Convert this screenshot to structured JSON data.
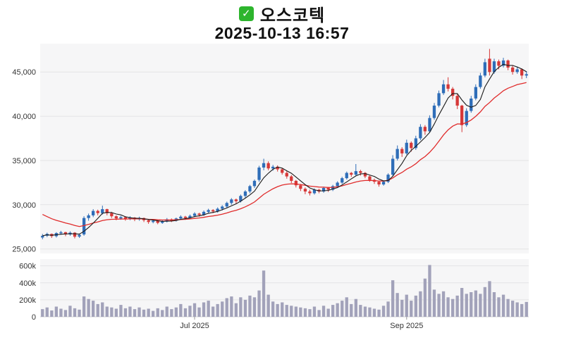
{
  "header": {
    "checkbox_glyph": "✓",
    "checkbox_color": "#2db52d",
    "title": "오스코텍",
    "subtitle": "2025-10-13 16:57"
  },
  "chart_data": {
    "type": "candlestick",
    "title": "오스코텍",
    "subtitle": "2025-10-13 16:57",
    "legend": "none",
    "grid": "horizontal",
    "y_axis": {
      "ticks": [
        "45,000",
        "40,000",
        "35,000",
        "30,000",
        "25,000"
      ],
      "tick_values": [
        45000,
        40000,
        35000,
        30000,
        25000
      ],
      "min": 24500,
      "max": 48200
    },
    "volume_axis": {
      "ticks": [
        "600k",
        "400k",
        "200k",
        "0"
      ],
      "tick_values": [
        600000,
        400000,
        200000,
        0
      ],
      "max": 680000
    },
    "x_axis": {
      "ticks": [
        {
          "index": 33,
          "label": "Jul 2025"
        },
        {
          "index": 79,
          "label": "Sep 2025"
        }
      ]
    },
    "colors": {
      "up": "#2e6db8",
      "down": "#d63838",
      "ma_short": "#1b1b1b",
      "ma_long": "#e02b2b",
      "volume": "#a2a2ba",
      "plot_bg": "#f6f6f7",
      "grid": "#e4e4e6",
      "axis_text": "#333333"
    },
    "moving_averages": {
      "short_window": 5,
      "long_type": "ema",
      "long_alpha": 0.11,
      "long_seed": 29200
    },
    "series": {
      "candles": [
        [
          26300,
          26700,
          26100,
          26500
        ],
        [
          26500,
          26850,
          26350,
          26700
        ],
        [
          26700,
          26750,
          26250,
          26450
        ],
        [
          26450,
          26900,
          26300,
          26800
        ],
        [
          26800,
          27050,
          26600,
          26900
        ],
        [
          26900,
          26950,
          26450,
          26650
        ],
        [
          26650,
          27000,
          26500,
          26850
        ],
        [
          26850,
          26900,
          26200,
          26400
        ],
        [
          26400,
          26750,
          26250,
          26600
        ],
        [
          26650,
          28700,
          26500,
          28500
        ],
        [
          28500,
          29000,
          28200,
          28800
        ],
        [
          28800,
          29500,
          28600,
          29300
        ],
        [
          29300,
          29450,
          28800,
          29050
        ],
        [
          29050,
          29900,
          28900,
          29500
        ],
        [
          29500,
          29550,
          28800,
          29050
        ],
        [
          29050,
          29200,
          28500,
          28700
        ],
        [
          28700,
          28800,
          28250,
          28450
        ],
        [
          28450,
          28750,
          28300,
          28600
        ],
        [
          28600,
          28700,
          28200,
          28400
        ],
        [
          28400,
          28700,
          28250,
          28550
        ],
        [
          28550,
          28600,
          28150,
          28350
        ],
        [
          28350,
          28650,
          28200,
          28500
        ],
        [
          28500,
          28550,
          28050,
          28250
        ],
        [
          28250,
          28350,
          27850,
          28050
        ],
        [
          28050,
          28350,
          27900,
          28200
        ],
        [
          28200,
          28250,
          27800,
          27950
        ],
        [
          27950,
          28300,
          27850,
          28150
        ],
        [
          28150,
          28500,
          28000,
          28350
        ],
        [
          28350,
          28450,
          28050,
          28200
        ],
        [
          28200,
          28550,
          28100,
          28450
        ],
        [
          28450,
          28800,
          28300,
          28650
        ],
        [
          28650,
          28750,
          28300,
          28500
        ],
        [
          28500,
          28900,
          28400,
          28750
        ],
        [
          28750,
          29150,
          28600,
          29000
        ],
        [
          29000,
          29100,
          28650,
          28850
        ],
        [
          28850,
          29350,
          28750,
          29200
        ],
        [
          29200,
          29550,
          29000,
          29400
        ],
        [
          29400,
          29500,
          29050,
          29250
        ],
        [
          29250,
          29700,
          29100,
          29550
        ],
        [
          29550,
          29950,
          29350,
          29800
        ],
        [
          29800,
          30350,
          29650,
          30200
        ],
        [
          30200,
          30750,
          30000,
          30600
        ],
        [
          30600,
          30700,
          30150,
          30400
        ],
        [
          30400,
          31150,
          30250,
          31000
        ],
        [
          31000,
          31650,
          30800,
          31500
        ],
        [
          31500,
          32250,
          31300,
          32100
        ],
        [
          32100,
          32850,
          31900,
          32700
        ],
        [
          32800,
          34400,
          32600,
          34200
        ],
        [
          34200,
          35200,
          33900,
          34700
        ],
        [
          34700,
          34900,
          33900,
          34100
        ],
        [
          34100,
          34500,
          33850,
          34300
        ],
        [
          34300,
          34450,
          33750,
          34000
        ],
        [
          34000,
          34150,
          33400,
          33600
        ],
        [
          33600,
          33800,
          32950,
          33200
        ],
        [
          33200,
          33350,
          32450,
          32700
        ],
        [
          32700,
          32800,
          31950,
          32200
        ],
        [
          32200,
          32350,
          31550,
          31800
        ],
        [
          31800,
          31950,
          31200,
          31500
        ],
        [
          31500,
          31700,
          31050,
          31300
        ],
        [
          31300,
          31850,
          31150,
          31700
        ],
        [
          31700,
          31800,
          31300,
          31500
        ],
        [
          31500,
          32050,
          31350,
          31900
        ],
        [
          31900,
          32000,
          31450,
          31700
        ],
        [
          31700,
          32250,
          31550,
          32100
        ],
        [
          32100,
          32650,
          31950,
          32500
        ],
        [
          32500,
          33150,
          32350,
          33000
        ],
        [
          33000,
          33750,
          32850,
          33600
        ],
        [
          33600,
          33700,
          33150,
          33400
        ],
        [
          33400,
          34600,
          33250,
          33800
        ],
        [
          33800,
          33950,
          33300,
          33600
        ],
        [
          33600,
          33700,
          33000,
          33200
        ],
        [
          33200,
          33300,
          32600,
          32800
        ],
        [
          32800,
          32950,
          32350,
          32600
        ],
        [
          32600,
          32700,
          32050,
          32300
        ],
        [
          32300,
          32750,
          32150,
          32600
        ],
        [
          32600,
          33550,
          32450,
          33400
        ],
        [
          33400,
          35600,
          33250,
          35200
        ],
        [
          35200,
          36700,
          35000,
          36300
        ],
        [
          36300,
          36500,
          35400,
          35800
        ],
        [
          35800,
          37350,
          35650,
          37000
        ],
        [
          37000,
          37150,
          36000,
          36400
        ],
        [
          36400,
          37800,
          36200,
          37500
        ],
        [
          37500,
          39100,
          37300,
          38800
        ],
        [
          38800,
          39000,
          37900,
          38300
        ],
        [
          38300,
          40100,
          38150,
          39800
        ],
        [
          39800,
          41500,
          39600,
          41200
        ],
        [
          41200,
          42900,
          41000,
          42600
        ],
        [
          42600,
          44100,
          42400,
          43600
        ],
        [
          43600,
          44400,
          42800,
          43100
        ],
        [
          43100,
          43300,
          41900,
          42300
        ],
        [
          42300,
          42500,
          40800,
          41200
        ],
        [
          41200,
          41300,
          38200,
          39000
        ],
        [
          39000,
          40900,
          38800,
          40600
        ],
        [
          40600,
          42300,
          40400,
          42000
        ],
        [
          42000,
          43600,
          41800,
          43300
        ],
        [
          43300,
          44900,
          43100,
          44600
        ],
        [
          44600,
          46500,
          44400,
          46100
        ],
        [
          46500,
          47600,
          44600,
          45000
        ],
        [
          45000,
          46500,
          44800,
          46200
        ],
        [
          46200,
          46400,
          45300,
          45700
        ],
        [
          45700,
          46600,
          45500,
          46300
        ],
        [
          46300,
          46400,
          45200,
          45500
        ],
        [
          45500,
          45700,
          44700,
          45000
        ],
        [
          45000,
          45600,
          44800,
          45300
        ],
        [
          45300,
          45400,
          44200,
          44600
        ],
        [
          44600,
          45100,
          44300,
          44750
        ]
      ],
      "volumes": [
        90000,
        110000,
        75000,
        120000,
        95000,
        80000,
        130000,
        100000,
        85000,
        240000,
        210000,
        190000,
        150000,
        170000,
        120000,
        110000,
        95000,
        140000,
        100000,
        120000,
        90000,
        110000,
        85000,
        95000,
        70000,
        100000,
        80000,
        120000,
        90000,
        110000,
        150000,
        100000,
        130000,
        160000,
        110000,
        170000,
        190000,
        120000,
        150000,
        180000,
        220000,
        240000,
        160000,
        230000,
        200000,
        250000,
        230000,
        310000,
        545000,
        260000,
        180000,
        150000,
        170000,
        140000,
        130000,
        120000,
        110000,
        100000,
        90000,
        120000,
        80000,
        130000,
        95000,
        140000,
        160000,
        190000,
        230000,
        150000,
        210000,
        140000,
        120000,
        110000,
        95000,
        85000,
        130000,
        180000,
        430000,
        280000,
        200000,
        260000,
        190000,
        250000,
        300000,
        450000,
        610000,
        320000,
        270000,
        300000,
        230000,
        210000,
        250000,
        340000,
        270000,
        290000,
        310000,
        270000,
        350000,
        420000,
        290000,
        230000,
        260000,
        210000,
        190000,
        170000,
        150000,
        175000
      ]
    }
  }
}
